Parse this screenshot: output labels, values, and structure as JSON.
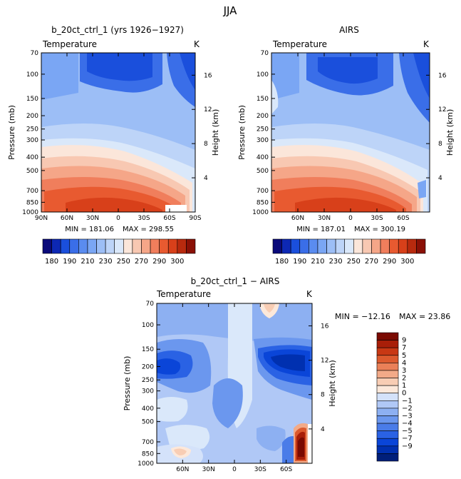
{
  "figure_title": "JJA",
  "chart_data": [
    {
      "type": "heatmap",
      "title": "b_20ct_ctrl_1 (yrs 1926−1927)",
      "variable": "Temperature",
      "units": "K",
      "ylabel": "Pressure (mb)",
      "ylabel_right": "Height (km)",
      "x_ticks": [
        "90N",
        "60N",
        "30N",
        "0",
        "30S",
        "60S",
        "90S"
      ],
      "y_ticks": [
        "70",
        "100",
        "150",
        "200",
        "250",
        "300",
        "400",
        "500",
        "700",
        "850",
        "1000"
      ],
      "y_ticks_right": [
        "16",
        "12",
        "8",
        "4"
      ],
      "min_label": "MIN = 181.06",
      "max_label": "MAX = 298.55",
      "min": 181.06,
      "max": 298.55,
      "colorbar_labels": [
        "180",
        "190",
        "210",
        "230",
        "250",
        "270",
        "290",
        "300"
      ]
    },
    {
      "type": "heatmap",
      "title": "AIRS",
      "variable": "Temperature",
      "units": "K",
      "ylabel": "Pressure (mb)",
      "ylabel_right": "Height (km)",
      "x_ticks": [
        "60N",
        "30N",
        "0",
        "30S",
        "60S"
      ],
      "y_ticks": [
        "70",
        "100",
        "150",
        "200",
        "250",
        "300",
        "400",
        "500",
        "700",
        "850",
        "1000"
      ],
      "y_ticks_right": [
        "16",
        "12",
        "8",
        "4"
      ],
      "min_label": "MIN = 187.01",
      "max_label": "MAX = 300.19",
      "min": 187.01,
      "max": 300.19,
      "colorbar_labels": [
        "180",
        "190",
        "210",
        "230",
        "250",
        "270",
        "290",
        "300"
      ]
    },
    {
      "type": "heatmap",
      "title": "b_20ct_ctrl_1 − AIRS",
      "variable": "Temperature",
      "units": "K",
      "ylabel": "Pressure (mb)",
      "ylabel_right": "Height (km)",
      "x_ticks": [
        "60N",
        "30N",
        "0",
        "30S",
        "60S"
      ],
      "y_ticks": [
        "70",
        "100",
        "150",
        "200",
        "250",
        "300",
        "400",
        "500",
        "700",
        "850",
        "1000"
      ],
      "y_ticks_right": [
        "16",
        "12",
        "8",
        "4"
      ],
      "min_label": "MIN = −12.16",
      "max_label": "MAX =   23.86",
      "min": -12.16,
      "max": 23.86,
      "colorbar_labels": [
        "9",
        "7",
        "5",
        "4",
        "3",
        "2",
        "1",
        "0",
        "−1",
        "−2",
        "−3",
        "−4",
        "−5",
        "−7",
        "−9"
      ]
    }
  ],
  "colors": {
    "temperature_scale": [
      "#0a0a7a",
      "#0d28b4",
      "#1a4fdc",
      "#3a6ee8",
      "#5a8cf0",
      "#7aa6f4",
      "#9cbef6",
      "#bdd4f8",
      "#dae8fa",
      "#fbe6da",
      "#f8c8b2",
      "#f5a688",
      "#f07e5c",
      "#e85a30",
      "#d8401a",
      "#b82a0e",
      "#8a1006"
    ],
    "difference_scale": [
      "#001f7a",
      "#0030b0",
      "#0a45d8",
      "#2a62e4",
      "#4a7ce8",
      "#6b97ee",
      "#8db0f2",
      "#b0c8f6",
      "#d4e2fa",
      "#fce8da",
      "#f8cdb4",
      "#f2aa88",
      "#ea8058",
      "#dc5a2e",
      "#c83814",
      "#a81e08",
      "#7a0a02"
    ]
  }
}
